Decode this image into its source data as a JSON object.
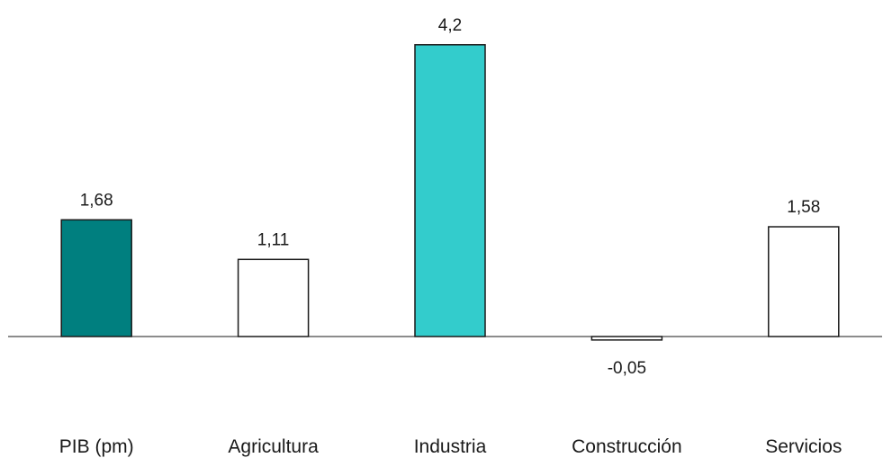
{
  "chart_data": {
    "type": "bar",
    "categories": [
      "PIB (pm)",
      "Agricultura",
      "Industria",
      "Construcción",
      "Servicios"
    ],
    "values": [
      1.68,
      1.11,
      4.2,
      -0.05,
      1.58
    ],
    "value_labels": [
      "1,68",
      "1,11",
      "4,2",
      "-0,05",
      "1,58"
    ],
    "bar_colors": [
      "#007f7f",
      "#ffffff",
      "#33cccc",
      "#ffffff",
      "#ffffff"
    ],
    "bar_edge_color": "#1a1a1a",
    "title": "",
    "xlabel": "",
    "ylabel": "",
    "grid": false,
    "legend": "none",
    "axis_line": "zero"
  }
}
